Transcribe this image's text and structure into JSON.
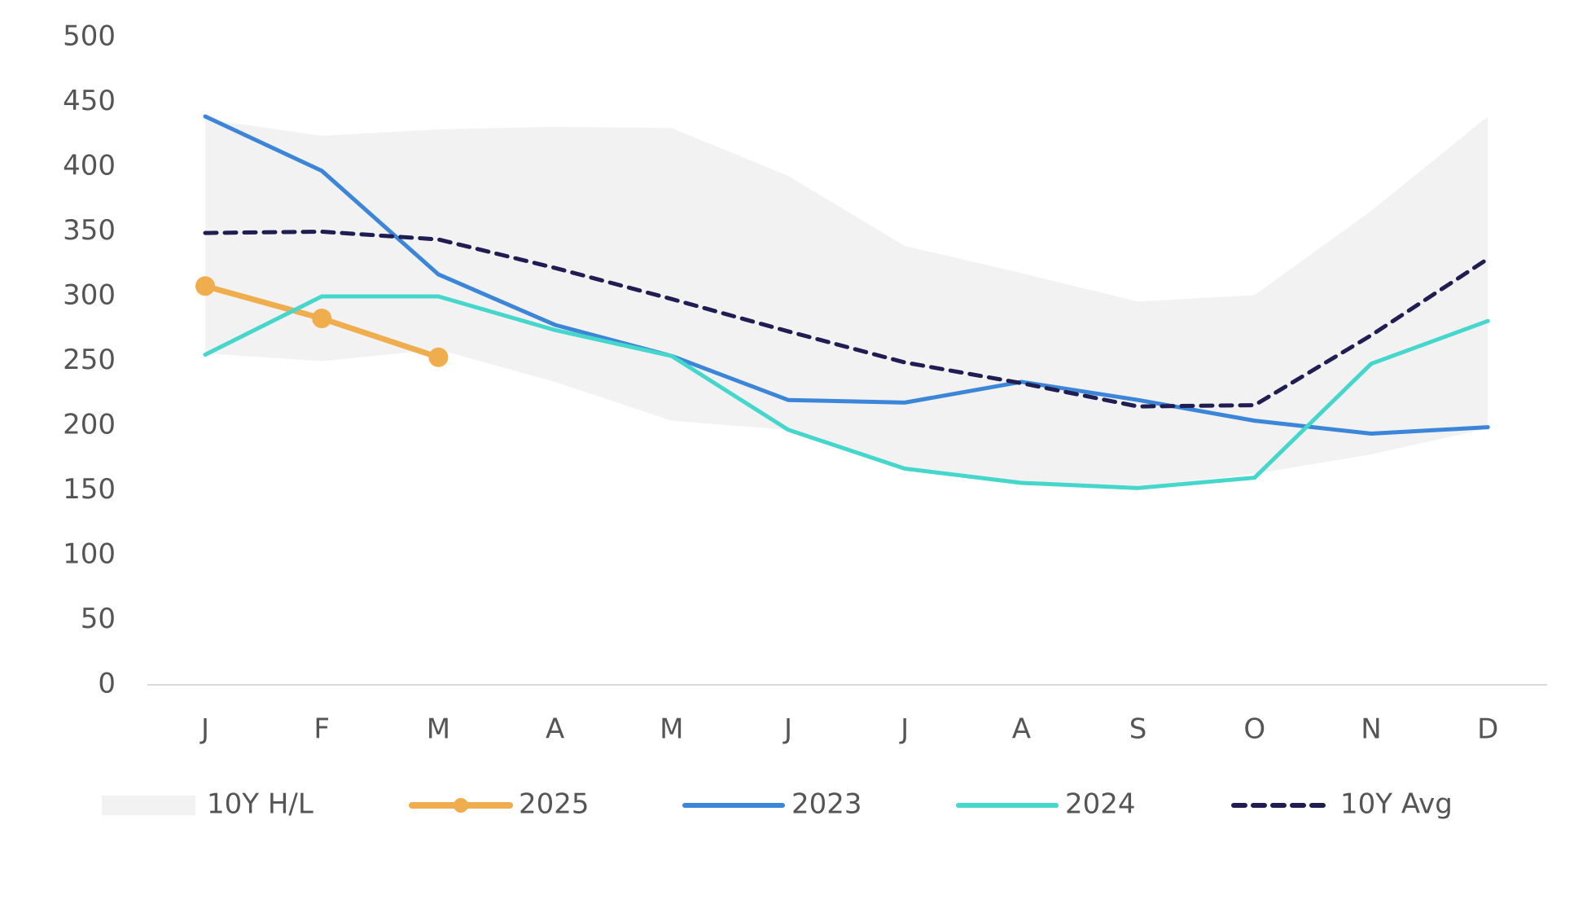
{
  "chart_data": {
    "type": "line",
    "categories": [
      "J",
      "F",
      "M",
      "A",
      "M",
      "J",
      "J",
      "A",
      "S",
      "O",
      "N",
      "D"
    ],
    "ylim": [
      0,
      500
    ],
    "yticks": [
      0,
      50,
      100,
      150,
      200,
      250,
      300,
      350,
      400,
      450,
      500
    ],
    "band": {
      "name": "10Y H/L",
      "color": "#f2f2f2",
      "high": [
        437,
        424,
        429,
        431,
        430,
        393,
        339,
        318,
        296,
        301,
        366,
        439
      ],
      "low": [
        256,
        250,
        259,
        234,
        204,
        197,
        168,
        157,
        153,
        163,
        178,
        198
      ]
    },
    "series": [
      {
        "name": "2025",
        "color": "#f0ad4e",
        "markers": true,
        "values": [
          308,
          283,
          253,
          null,
          null,
          null,
          null,
          null,
          null,
          null,
          null,
          null
        ]
      },
      {
        "name": "2023",
        "color": "#3b86d8",
        "values": [
          439,
          397,
          317,
          278,
          254,
          220,
          218,
          234,
          220,
          204,
          194,
          199
        ]
      },
      {
        "name": "2024",
        "color": "#45d6cc",
        "values": [
          255,
          300,
          300,
          274,
          254,
          197,
          167,
          156,
          152,
          160,
          248,
          281
        ]
      },
      {
        "name": "10Y Avg",
        "color": "#1f1d52",
        "dashed": true,
        "values": [
          349,
          350,
          344,
          322,
          298,
          273,
          249,
          233,
          215,
          216,
          270,
          329
        ]
      }
    ]
  }
}
